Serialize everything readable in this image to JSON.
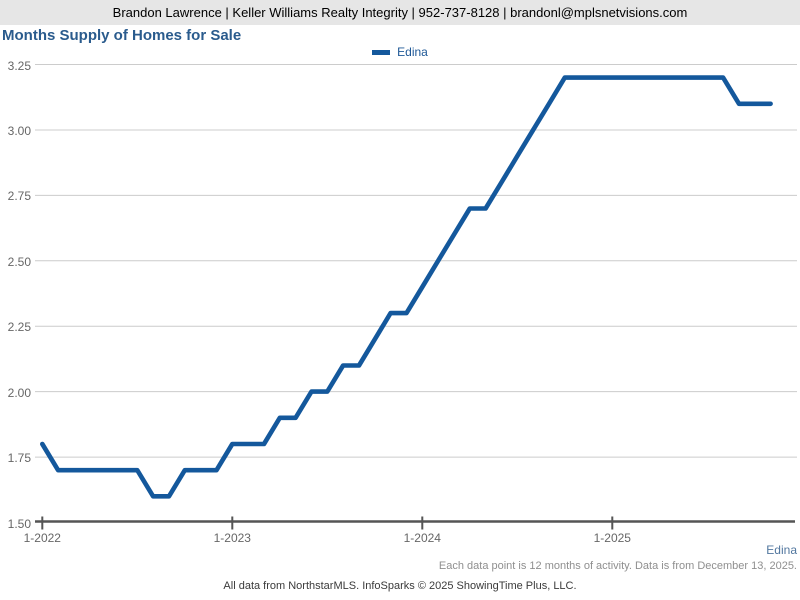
{
  "header": {
    "contact_line": "Brandon Lawrence | Keller Williams Realty Integrity | 952-737-8128 | brandonl@mplsnetvisions.com"
  },
  "chart": {
    "title": "Months Supply of Homes for Sale",
    "legend_label": "Edina"
  },
  "footnotes": {
    "series_label": "Edina",
    "data_note": "Each data point is 12 months of activity. Data is from December 13, 2025.",
    "attribution": "All data from NorthstarMLS. InfoSparks © 2025 ShowingTime Plus, LLC."
  },
  "colors": {
    "accent_line": "#14589c",
    "title_text": "#2a5b8d",
    "legend_text": "#1d5796",
    "series_footnote_text": "#52779f",
    "note_text": "#8f8f8f",
    "attribution_text": "#3a3a3a",
    "grid_line": "#cccccc",
    "axis_line": "#555555",
    "axis_label": "#666666",
    "header_bg": "#e6e6e6",
    "header_text": "#000000"
  },
  "chart_data": {
    "type": "line",
    "title": "Months Supply of Homes for Sale",
    "xlabel": "",
    "ylabel": "",
    "ylim": [
      1.5,
      3.25
    ],
    "grid": true,
    "legend_position": "top-center",
    "y_tick_labels": [
      "1.50",
      "1.75",
      "2.00",
      "2.25",
      "2.50",
      "2.75",
      "3.00",
      "3.25"
    ],
    "x_ticks": [
      {
        "month_index": 0,
        "label": "1-2022"
      },
      {
        "month_index": 12,
        "label": "1-2023"
      },
      {
        "month_index": 24,
        "label": "1-2024"
      },
      {
        "month_index": 36,
        "label": "1-2025"
      }
    ],
    "x": [
      "1-2022",
      "2-2022",
      "3-2022",
      "4-2022",
      "5-2022",
      "6-2022",
      "7-2022",
      "8-2022",
      "9-2022",
      "10-2022",
      "11-2022",
      "12-2022",
      "1-2023",
      "2-2023",
      "3-2023",
      "4-2023",
      "5-2023",
      "6-2023",
      "7-2023",
      "8-2023",
      "9-2023",
      "10-2023",
      "11-2023",
      "12-2023",
      "1-2024",
      "2-2024",
      "3-2024",
      "4-2024",
      "5-2024",
      "6-2024",
      "7-2024",
      "8-2024",
      "9-2024",
      "10-2024",
      "11-2024",
      "12-2024",
      "1-2025",
      "2-2025",
      "3-2025",
      "4-2025",
      "5-2025",
      "6-2025",
      "7-2025",
      "8-2025",
      "9-2025",
      "10-2025",
      "11-2025"
    ],
    "series": [
      {
        "name": "Edina",
        "values": [
          1.8,
          1.7,
          1.7,
          1.7,
          1.7,
          1.7,
          1.7,
          1.6,
          1.6,
          1.7,
          1.7,
          1.7,
          1.8,
          1.8,
          1.8,
          1.9,
          1.9,
          2.0,
          2.0,
          2.1,
          2.1,
          2.2,
          2.3,
          2.3,
          2.4,
          2.5,
          2.6,
          2.7,
          2.7,
          2.8,
          2.9,
          3.0,
          3.1,
          3.2,
          3.2,
          3.2,
          3.2,
          3.2,
          3.2,
          3.2,
          3.2,
          3.2,
          3.2,
          3.2,
          3.1,
          3.1,
          3.1
        ]
      }
    ]
  }
}
